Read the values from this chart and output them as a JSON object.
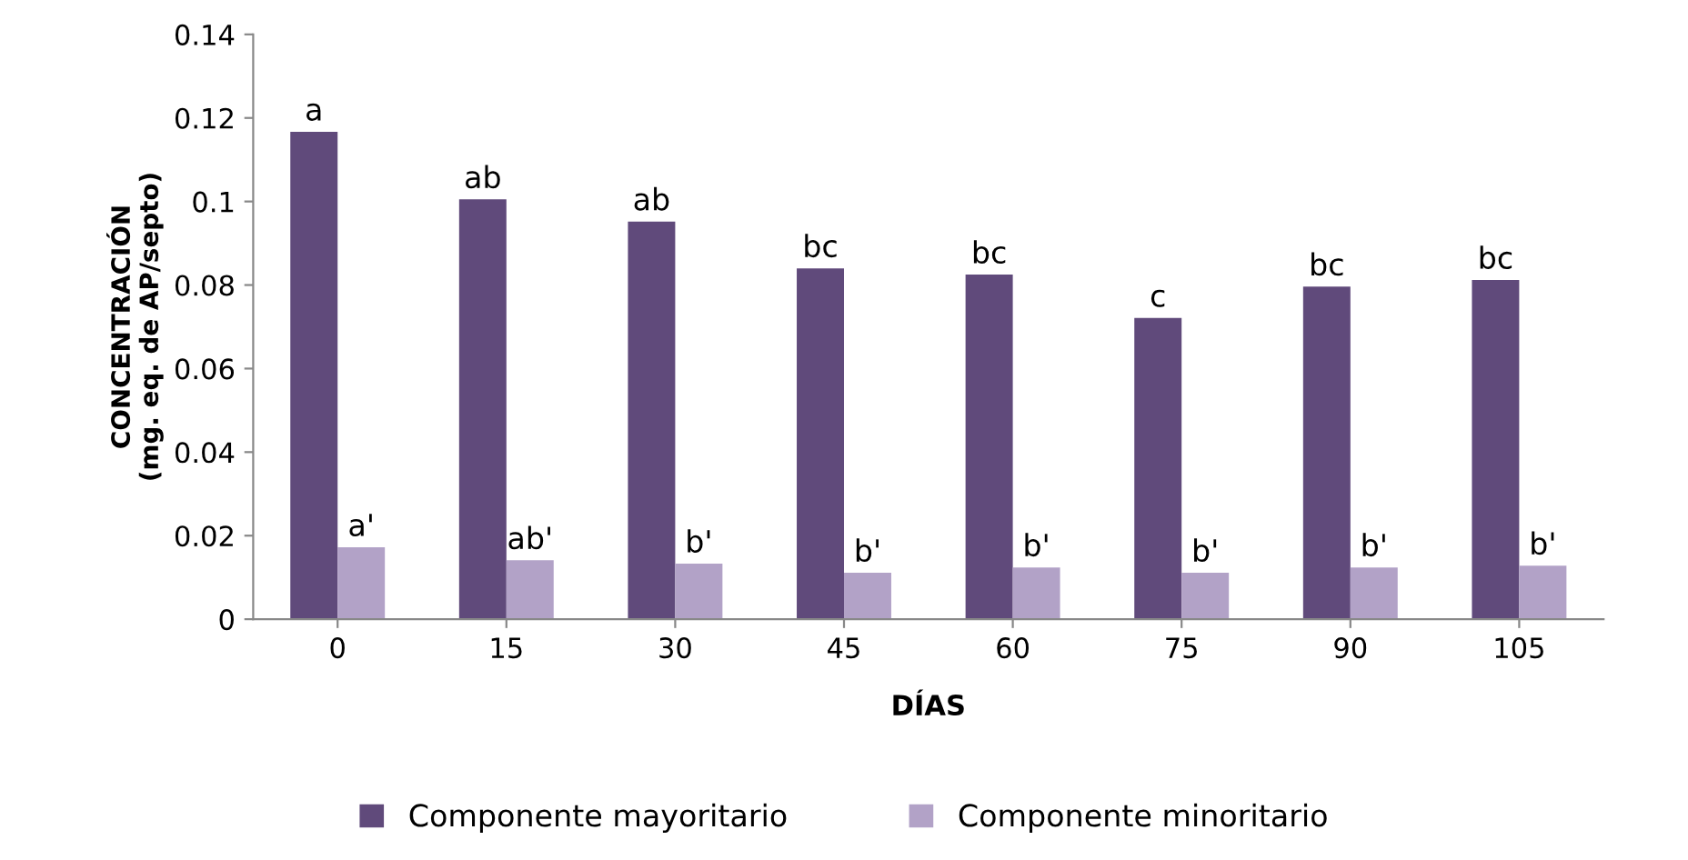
{
  "chart_data": {
    "type": "bar",
    "xlabel": "DÍAS",
    "ylabel": "CONCENTRACIÓN\n(mg. eq. de AP/septo)",
    "categories": [
      "0",
      "15",
      "30",
      "45",
      "60",
      "75",
      "90",
      "105"
    ],
    "series": [
      {
        "name": "Componente mayoritario",
        "color": "#604a7b",
        "values": [
          0.1167,
          0.1005,
          0.0952,
          0.084,
          0.0825,
          0.0721,
          0.0796,
          0.0812
        ],
        "value_labels": [
          "a",
          "ab",
          "ab",
          "bc",
          "bc",
          "c",
          "bc",
          "bc"
        ]
      },
      {
        "name": "Componente minoritario",
        "color": "#b2a2c7",
        "values": [
          0.0172,
          0.0141,
          0.0133,
          0.0111,
          0.0124,
          0.0111,
          0.0124,
          0.0128
        ],
        "value_labels": [
          "a'",
          "ab'",
          "b'",
          "b'",
          "b'",
          "b'",
          "b'",
          "b'"
        ]
      }
    ],
    "ylim": [
      0,
      0.14
    ],
    "yticks": [
      {
        "value": 0,
        "label": "0"
      },
      0.02,
      0.04,
      0.06,
      0.08,
      {
        "value": 0.1,
        "label": "0.1"
      },
      0.12,
      0.14
    ],
    "grid": false,
    "legend": "bottom"
  }
}
